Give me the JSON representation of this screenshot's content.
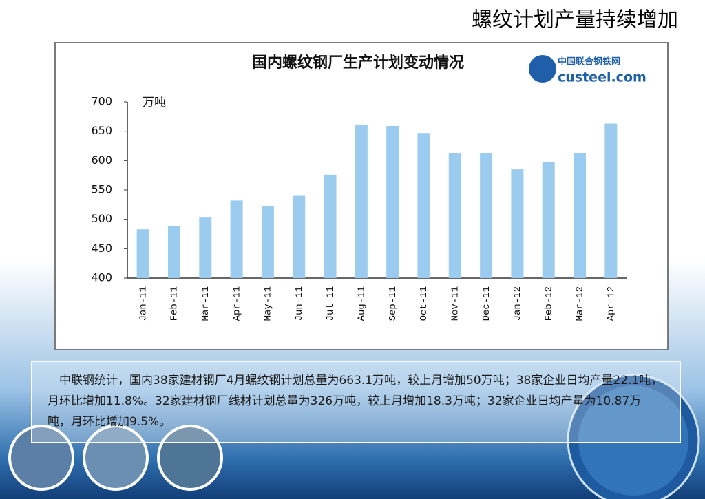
{
  "slide_title": "螺纹计划产量持续增加",
  "logo": {
    "name": "中国联合钢铁网",
    "site": "custeel.com"
  },
  "paragraph": "中联钢统计，国内38家建材钢厂4月螺纹钢计划总量为663.1万吨，较上月增加50万吨；38家企业日均产量22.1吨，月环比增加11.8%。32家建材钢厂线材计划总量为326万吨，较上月增加18.3万吨；32家企业日均产量为10.87万吨，月环比增加9.5%。",
  "chart_data": {
    "type": "bar",
    "title": "国内螺纹钢厂生产计划变动情况",
    "y_label": "万吨",
    "categories": [
      "Jan-11",
      "Feb-11",
      "Mar-11",
      "Apr-11",
      "May-11",
      "Jun-11",
      "Jul-11",
      "Aug-11",
      "Sep-11",
      "Oct-11",
      "Nov-11",
      "Dec-11",
      "Jan-12",
      "Feb-12",
      "Mar-12",
      "Apr-12"
    ],
    "values": [
      483,
      489,
      503,
      532,
      523,
      540,
      576,
      661,
      659,
      647,
      613,
      613,
      585,
      597,
      613,
      663
    ],
    "color": "#9ccbf0",
    "ylim": [
      400,
      700
    ],
    "yticks": [
      400,
      450,
      500,
      550,
      600,
      650,
      700
    ],
    "grid": false
  }
}
